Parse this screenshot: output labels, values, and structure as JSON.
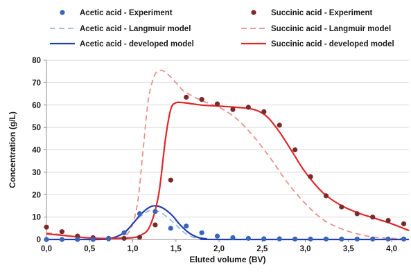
{
  "chart_data": {
    "type": "line",
    "xlabel": "Eluted volume (BV)",
    "ylabel": "Concentration (g/L)",
    "xlim": [
      0,
      4.2
    ],
    "ylim": [
      0,
      80
    ],
    "xticks": [
      0,
      0.5,
      1,
      1.5,
      2,
      2.5,
      3,
      3.5,
      4
    ],
    "xtick_labels": [
      "0,0",
      "0,5",
      "1,0",
      "1,5",
      "2,0",
      "2,5",
      "3,0",
      "3,5",
      "4,0"
    ],
    "yticks": [
      0,
      10,
      20,
      30,
      40,
      50,
      60,
      70,
      80
    ],
    "ytick_labels": [
      "0",
      "10",
      "20",
      "30",
      "40",
      "50",
      "60",
      "70",
      "80"
    ],
    "grid": "horizontal",
    "legend_position": "top",
    "series": [
      {
        "name": "Acetic acid - Experiment",
        "kind": "scatter",
        "color": "#3a66b8",
        "points": [
          [
            0.0,
            0.0
          ],
          [
            0.18,
            0.0
          ],
          [
            0.36,
            0.0
          ],
          [
            0.54,
            0.0
          ],
          [
            0.72,
            0.3
          ],
          [
            0.9,
            3.0
          ],
          [
            1.08,
            11.5
          ],
          [
            1.26,
            12.5
          ],
          [
            1.44,
            5.0
          ],
          [
            1.62,
            6.0
          ],
          [
            1.8,
            3.0
          ],
          [
            1.98,
            1.5
          ],
          [
            2.16,
            0.8
          ],
          [
            2.34,
            0.5
          ],
          [
            2.52,
            0.3
          ],
          [
            2.7,
            0.3
          ],
          [
            2.88,
            0.2
          ],
          [
            3.06,
            0.2
          ],
          [
            3.24,
            0.2
          ],
          [
            3.42,
            0.2
          ],
          [
            3.6,
            0.2
          ],
          [
            3.78,
            0.2
          ],
          [
            3.96,
            0.2
          ],
          [
            4.14,
            0.2
          ]
        ]
      },
      {
        "name": "Succinic acid - Experiment",
        "kind": "scatter",
        "color": "#7b2a2a",
        "points": [
          [
            0.0,
            5.5
          ],
          [
            0.18,
            3.5
          ],
          [
            0.36,
            1.5
          ],
          [
            0.54,
            0.8
          ],
          [
            0.72,
            0.5
          ],
          [
            0.9,
            0.5
          ],
          [
            1.08,
            1.0
          ],
          [
            1.26,
            6.5
          ],
          [
            1.44,
            26.5
          ],
          [
            1.62,
            63.5
          ],
          [
            1.8,
            62.5
          ],
          [
            1.98,
            60.5
          ],
          [
            2.16,
            58.0
          ],
          [
            2.34,
            59.0
          ],
          [
            2.52,
            57.0
          ],
          [
            2.7,
            51.0
          ],
          [
            2.88,
            40.0
          ],
          [
            3.06,
            28.0
          ],
          [
            3.24,
            19.5
          ],
          [
            3.42,
            14.5
          ],
          [
            3.6,
            11.5
          ],
          [
            3.78,
            10.0
          ],
          [
            3.96,
            8.5
          ],
          [
            4.14,
            7.0
          ]
        ]
      },
      {
        "name": "Acetic acid - Langmuir model",
        "kind": "line",
        "dash": true,
        "color": "#9ab9e6",
        "points": [
          [
            0.0,
            0.0
          ],
          [
            0.5,
            0.0
          ],
          [
            0.7,
            0.3
          ],
          [
            0.85,
            2.0
          ],
          [
            0.95,
            5.0
          ],
          [
            1.05,
            9.0
          ],
          [
            1.15,
            12.0
          ],
          [
            1.22,
            13.0
          ],
          [
            1.3,
            12.5
          ],
          [
            1.4,
            10.0
          ],
          [
            1.5,
            6.5
          ],
          [
            1.6,
            3.0
          ],
          [
            1.7,
            1.0
          ],
          [
            1.8,
            0.3
          ],
          [
            2.0,
            0.0
          ],
          [
            4.2,
            0.0
          ]
        ]
      },
      {
        "name": "Succinic acid - Langmuir model",
        "kind": "line",
        "dash": true,
        "color": "#e8918a",
        "points": [
          [
            0.0,
            3.0
          ],
          [
            0.2,
            2.0
          ],
          [
            0.4,
            1.0
          ],
          [
            0.6,
            0.5
          ],
          [
            0.8,
            0.5
          ],
          [
            0.95,
            3.0
          ],
          [
            1.05,
            15.0
          ],
          [
            1.12,
            40.0
          ],
          [
            1.18,
            62.0
          ],
          [
            1.25,
            73.0
          ],
          [
            1.32,
            75.5
          ],
          [
            1.4,
            74.0
          ],
          [
            1.5,
            70.0
          ],
          [
            1.6,
            66.0
          ],
          [
            1.8,
            62.0
          ],
          [
            2.0,
            59.0
          ],
          [
            2.2,
            54.0
          ],
          [
            2.4,
            46.0
          ],
          [
            2.6,
            36.0
          ],
          [
            2.8,
            25.0
          ],
          [
            3.0,
            16.0
          ],
          [
            3.2,
            9.0
          ],
          [
            3.4,
            5.0
          ],
          [
            3.6,
            2.5
          ],
          [
            3.8,
            1.0
          ],
          [
            4.0,
            0.5
          ],
          [
            4.2,
            0.2
          ]
        ]
      },
      {
        "name": "Acetic acid - developed model",
        "kind": "line",
        "dash": false,
        "color": "#1f3fb0",
        "points": [
          [
            0.0,
            0.0
          ],
          [
            0.6,
            0.0
          ],
          [
            0.75,
            0.5
          ],
          [
            0.9,
            3.0
          ],
          [
            1.0,
            7.0
          ],
          [
            1.1,
            11.5
          ],
          [
            1.2,
            14.5
          ],
          [
            1.27,
            15.0
          ],
          [
            1.35,
            14.0
          ],
          [
            1.45,
            11.0
          ],
          [
            1.55,
            6.5
          ],
          [
            1.65,
            3.0
          ],
          [
            1.75,
            1.0
          ],
          [
            1.85,
            0.3
          ],
          [
            2.0,
            0.0
          ],
          [
            4.2,
            0.0
          ]
        ]
      },
      {
        "name": "Succinic acid - developed model",
        "kind": "line",
        "dash": false,
        "color": "#e0262a",
        "points": [
          [
            0.0,
            2.5
          ],
          [
            0.2,
            1.8
          ],
          [
            0.4,
            1.0
          ],
          [
            0.6,
            0.5
          ],
          [
            0.8,
            0.5
          ],
          [
            1.0,
            0.8
          ],
          [
            1.1,
            2.0
          ],
          [
            1.2,
            6.0
          ],
          [
            1.3,
            20.0
          ],
          [
            1.38,
            45.0
          ],
          [
            1.44,
            58.0
          ],
          [
            1.5,
            61.0
          ],
          [
            1.6,
            61.0
          ],
          [
            1.8,
            60.0
          ],
          [
            2.0,
            59.5
          ],
          [
            2.2,
            59.0
          ],
          [
            2.4,
            58.0
          ],
          [
            2.55,
            55.0
          ],
          [
            2.7,
            48.0
          ],
          [
            2.85,
            39.0
          ],
          [
            3.0,
            30.0
          ],
          [
            3.2,
            21.0
          ],
          [
            3.4,
            15.5
          ],
          [
            3.6,
            12.0
          ],
          [
            3.8,
            9.5
          ],
          [
            4.0,
            7.0
          ],
          [
            4.2,
            4.0
          ]
        ]
      }
    ]
  }
}
